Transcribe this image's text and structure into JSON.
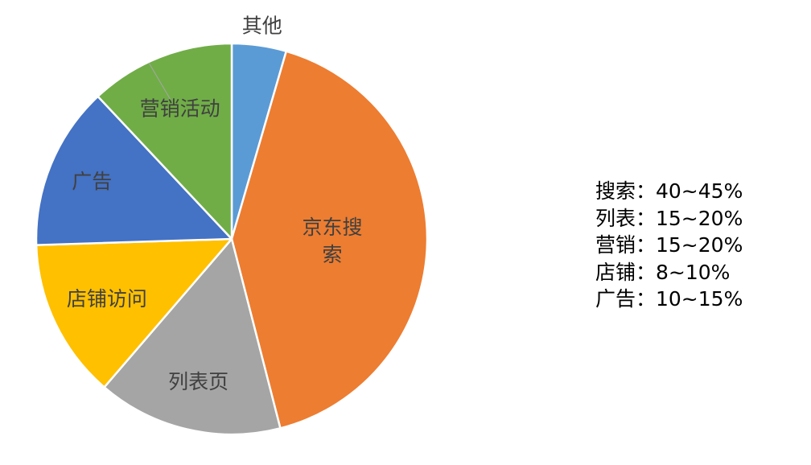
{
  "chart_data": {
    "type": "pie",
    "start_angle_deg": 0,
    "direction": "clockwise",
    "slices": [
      {
        "label": "其他",
        "value": 4.5,
        "color": "#5B9BD5",
        "label_outside": true
      },
      {
        "label": "京东搜索",
        "value": 41.5,
        "color": "#ED7D31"
      },
      {
        "label": "列表页",
        "value": 15.3,
        "color": "#A5A5A5"
      },
      {
        "label": "店铺访问",
        "value": 13.2,
        "color": "#FFC000"
      },
      {
        "label": "广告",
        "value": 13.5,
        "color": "#4472C4"
      },
      {
        "label": "营销活动",
        "value": 12.0,
        "color": "#70AD47"
      }
    ]
  },
  "legend_text": [
    "搜索：40~45%",
    "列表：15~20%",
    "营销：15~20%",
    "店铺：8~10%",
    "广告：10~15%"
  ]
}
